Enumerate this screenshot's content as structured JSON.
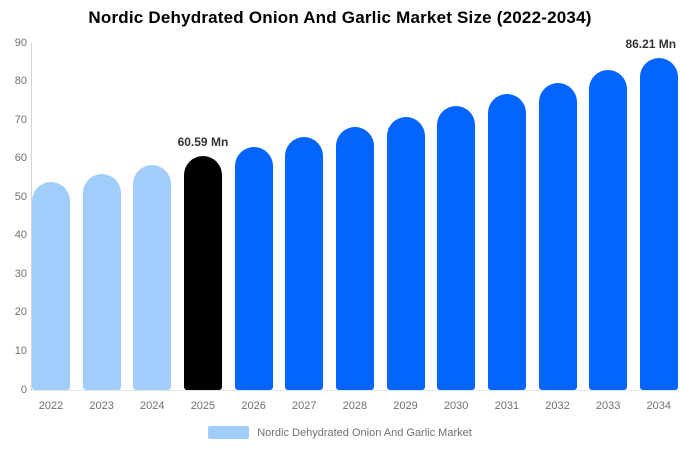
{
  "title": "Nordic Dehydrated Onion And Garlic Market Size (2022-2034)",
  "legend": {
    "label": "Nordic Dehydrated Onion And Garlic Market",
    "swatch_color": "#a1cdfa"
  },
  "colors": {
    "historical_bar": "#a1cdfa",
    "base_year_bar": "#000000",
    "forecast_bar": "#0465fc",
    "axis_line": "#d3d3d3",
    "baseline": "#e6e6e6",
    "tick_text": "#707070",
    "data_label_text": "#333333"
  },
  "chart_data": {
    "type": "bar",
    "title": "Nordic Dehydrated Onion And Garlic Market Size (2022-2034)",
    "unit": "Mn",
    "categories": [
      "2022",
      "2023",
      "2024",
      "2025",
      "2026",
      "2027",
      "2028",
      "2029",
      "2030",
      "2031",
      "2032",
      "2033",
      "2034"
    ],
    "values": [
      53.86,
      56.02,
      58.26,
      60.59,
      63.01,
      65.53,
      68.15,
      70.88,
      73.71,
      76.66,
      79.73,
      82.92,
      86.21
    ],
    "bar_colors": [
      "#a1cdfa",
      "#a1cdfa",
      "#a1cdfa",
      "#000000",
      "#0465fc",
      "#0465fc",
      "#0465fc",
      "#0465fc",
      "#0465fc",
      "#0465fc",
      "#0465fc",
      "#0465fc",
      "#0465fc"
    ],
    "annotations": [
      {
        "category": "2025",
        "text": "60.59 Mn",
        "dx": 0
      },
      {
        "category": "2034",
        "text": "86.21 Mn",
        "dx": -8
      }
    ],
    "ylim": [
      0,
      90
    ],
    "yticks": [
      0,
      10,
      20,
      30,
      40,
      50,
      60,
      70,
      80,
      90
    ],
    "grid": false,
    "legend_position": "bottom",
    "series_name": "Nordic Dehydrated Onion And Garlic Market"
  }
}
